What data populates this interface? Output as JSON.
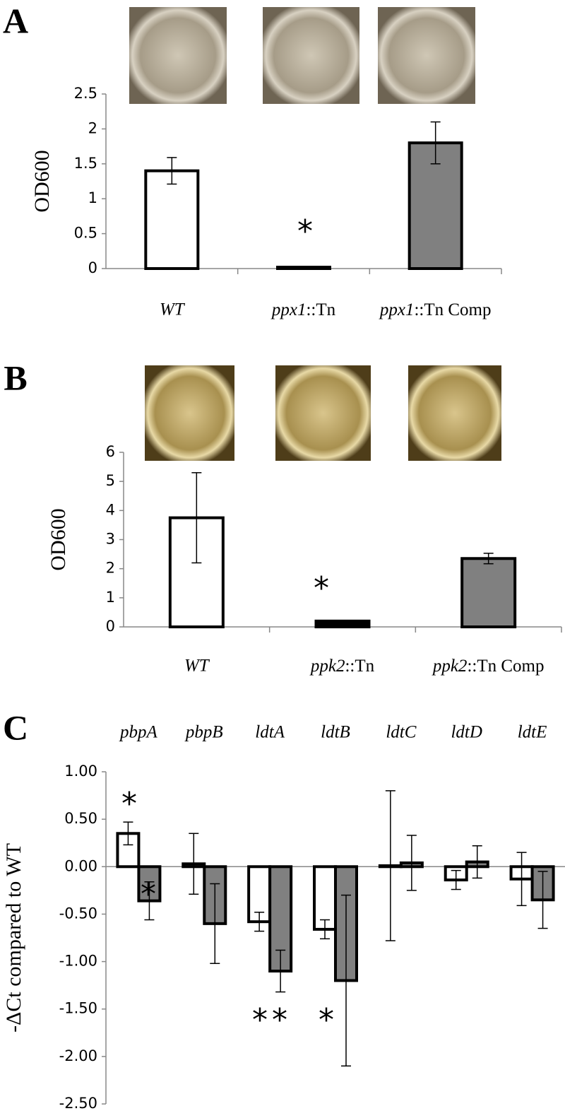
{
  "chart_data": [
    {
      "type": "bar",
      "panel_label": "A",
      "ylabel": "OD600",
      "categories": [
        "WT",
        "ppx1::Tn",
        "ppx1::Tn Comp"
      ],
      "values": [
        1.4,
        0.02,
        1.8
      ],
      "errors": [
        0.19,
        0,
        0.3
      ],
      "colors": [
        "#ffffff",
        "#000000",
        "#808080"
      ],
      "ylim": [
        0,
        2.5
      ],
      "yticks": [
        0,
        0.5,
        1,
        1.5,
        2,
        2.5
      ],
      "annotations": [
        "*"
      ]
    },
    {
      "type": "bar",
      "panel_label": "B",
      "ylabel": "OD600",
      "categories": [
        "WT",
        "ppk2::Tn",
        "ppk2::Tn Comp"
      ],
      "values": [
        3.75,
        0.2,
        2.35
      ],
      "errors": [
        1.55,
        0,
        0.18
      ],
      "colors": [
        "#ffffff",
        "#000000",
        "#808080"
      ],
      "ylim": [
        0,
        6
      ],
      "yticks": [
        0,
        1,
        2,
        3,
        4,
        5,
        6
      ],
      "annotations": [
        "*"
      ]
    },
    {
      "type": "grouped-bar",
      "panel_label": "C",
      "ylabel": "-ΔCt compared to WT",
      "categories": [
        "pbpA",
        "pbpB",
        "ldtA",
        "ldtB",
        "ldtC",
        "ldtD",
        "ldtE"
      ],
      "series": [
        {
          "color": "#ffffff",
          "values": [
            0.35,
            0.03,
            -0.58,
            -0.66,
            0.01,
            -0.14,
            -0.13
          ],
          "errors": [
            0.12,
            0.32,
            0.1,
            0.1,
            0.79,
            0.1,
            0.28
          ]
        },
        {
          "color": "#808080",
          "values": [
            -0.36,
            -0.6,
            -1.1,
            -1.2,
            0.04,
            0.05,
            -0.35
          ],
          "errors": [
            0.2,
            0.42,
            0.22,
            0.9,
            0.29,
            0.17,
            0.3
          ]
        }
      ],
      "ylim": [
        -2.5,
        1
      ],
      "yticks": [
        {
          "value": -2.5,
          "label": "-2.50"
        },
        {
          "value": -2,
          "label": "-2.00"
        },
        {
          "value": -1.5,
          "label": "-1.50"
        },
        {
          "value": -1,
          "label": "-1.00"
        },
        {
          "value": -0.5,
          "label": "-0.50"
        },
        {
          "value": 0,
          "label": "0.00"
        },
        {
          "value": 0.5,
          "label": "0.50"
        },
        {
          "value": 1,
          "label": "1.00"
        }
      ],
      "annotations": [
        "*",
        "*",
        "*",
        "*",
        "*"
      ]
    }
  ]
}
